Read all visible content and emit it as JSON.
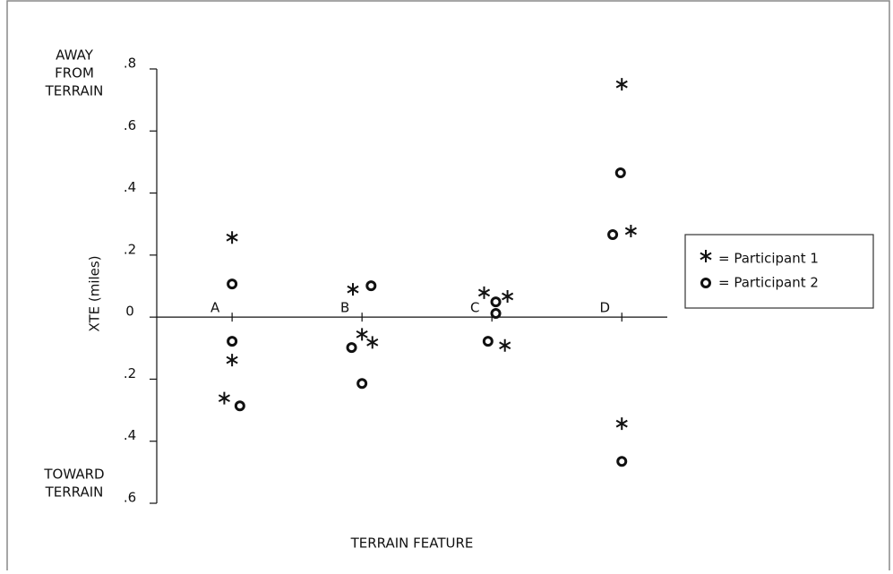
{
  "chart_data": {
    "type": "scatter",
    "y_label": "XTE (miles)",
    "x_label": "TERRAIN FEATURE",
    "annotations": [
      [
        "AWAY",
        "FROM",
        "TERRAIN"
      ],
      [
        "TOWARD",
        "TERRAIN"
      ]
    ],
    "categories": [
      "A",
      "B",
      "C",
      "D"
    ],
    "xticks": [
      1,
      2,
      3,
      4
    ],
    "xlim": [
      0.42,
      4.35
    ],
    "ylim": [
      -0.6,
      0.8
    ],
    "yticks": [
      {
        "value": 0.8,
        "label": ".8"
      },
      {
        "value": 0.6,
        "label": ".6"
      },
      {
        "value": 0.4,
        "label": ".4"
      },
      {
        "value": 0.2,
        "label": ".2"
      },
      0,
      {
        "value": -0.2,
        "label": ".2"
      },
      {
        "value": -0.4,
        "label": ".4"
      },
      {
        "value": -0.6,
        "label": ".6"
      }
    ],
    "legend": "right",
    "series": [
      {
        "name": "= Participant 1",
        "marker": "star",
        "color": "#111",
        "x": [
          1.0,
          1.0,
          0.94,
          1.93,
          2.0,
          2.08,
          2.94,
          3.12,
          3.1,
          4.0,
          4.07,
          4.0
        ],
        "values": [
          0.248,
          -0.147,
          -0.27,
          0.081,
          -0.064,
          -0.09,
          0.07,
          0.058,
          -0.1,
          0.742,
          0.269,
          -0.352
        ]
      },
      {
        "name": "= Participant 2",
        "marker": "circle",
        "color": "#111",
        "x": [
          1.0,
          1.0,
          1.06,
          2.07,
          1.92,
          2.0,
          3.03,
          3.03,
          2.97,
          3.99,
          3.93,
          4.0
        ],
        "values": [
          0.107,
          -0.078,
          -0.286,
          0.101,
          -0.098,
          -0.214,
          0.049,
          0.012,
          -0.078,
          0.465,
          0.266,
          -0.465
        ]
      }
    ]
  }
}
